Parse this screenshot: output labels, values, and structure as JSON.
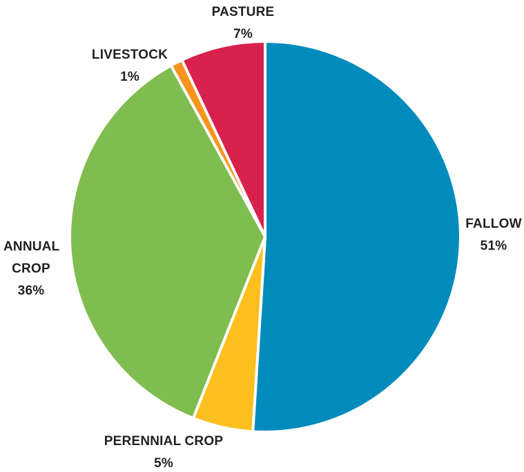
{
  "chart_data": {
    "type": "pie",
    "categories": [
      "FALLOW",
      "PERENNIAL CROP",
      "ANNUAL CROP",
      "LIVESTOCK",
      "PASTURE"
    ],
    "values": [
      51,
      5,
      36,
      1,
      7
    ],
    "value_labels": [
      "51%",
      "5%",
      "36%",
      "1%",
      "7%"
    ],
    "colors": [
      "#008bbd",
      "#fdbf1f",
      "#80bd50",
      "#f7941d",
      "#d9214e"
    ]
  }
}
